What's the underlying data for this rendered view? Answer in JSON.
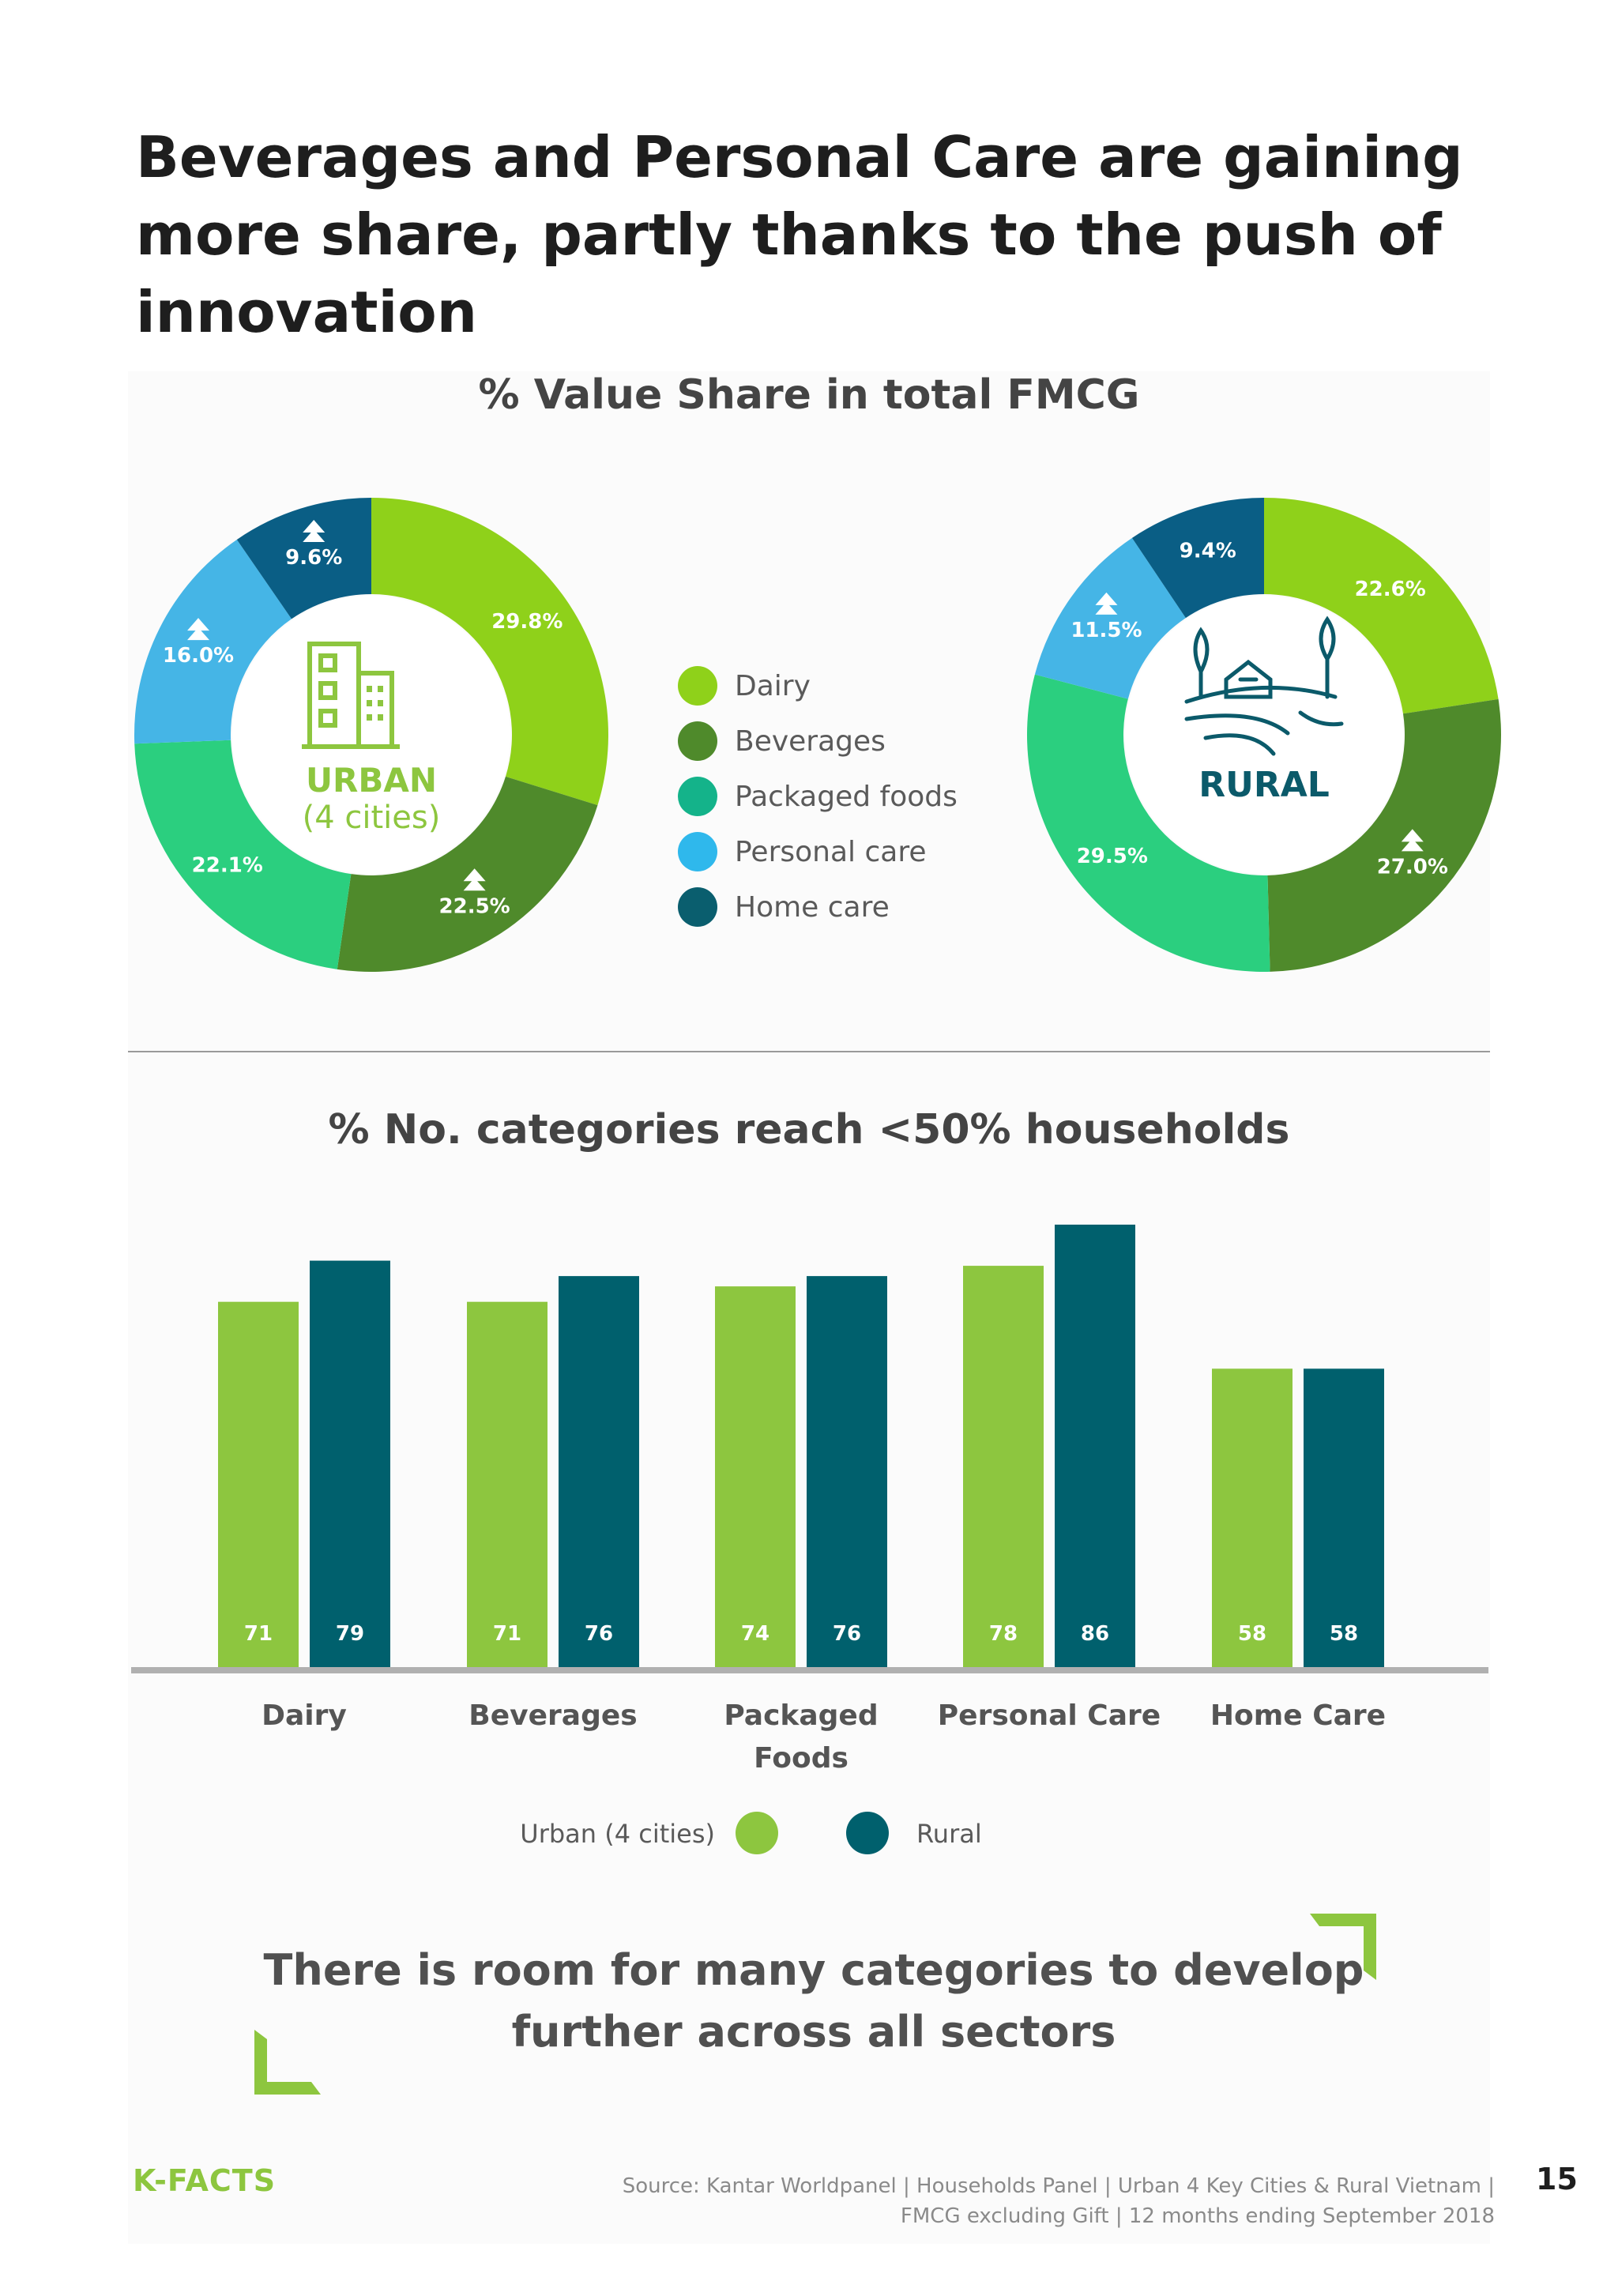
{
  "page_title": "Beverages and Personal Care are gaining more share, partly thanks to the push of innovation",
  "donut_section_title": "% Value Share in total FMCG",
  "bar_section_title": "% No. categories reach <50% households",
  "colors": {
    "dairy": "#8fd11a",
    "beverages": "#4f8a2b",
    "packaged_foods": "#2bcf7f",
    "personal_care": "#45b5e6",
    "home_care": "#0a5e85",
    "urban_bar": "#8dc63f",
    "rural_bar": "#00606d",
    "urban_label": "#8dc63f",
    "rural_label": "#0b5a6a",
    "accent": "#8dc63f"
  },
  "legend": [
    {
      "label": "Dairy",
      "color": "#8fd11a"
    },
    {
      "label": "Beverages",
      "color": "#4f8a2b"
    },
    {
      "label": "Packaged foods",
      "color": "#14b38a"
    },
    {
      "label": "Personal care",
      "color": "#2fb8ec"
    },
    {
      "label": "Home care",
      "color": "#0a5e6e"
    }
  ],
  "urban_center": {
    "label": "URBAN",
    "sublabel": "(4 cities)",
    "icon": "buildings-icon"
  },
  "rural_center": {
    "label": "RURAL",
    "icon": "farm-icon"
  },
  "bar_legend": {
    "urban": "Urban (4 cities)",
    "rural": "Rural"
  },
  "tagline": "There is room for many categories to develop further across all sectors",
  "footer": {
    "brand": "K-FACTS",
    "source_line1": "Source: Kantar Worldpanel | Households Panel | Urban 4 Key Cities & Rural Vietnam |",
    "source_line2": "FMCG excluding Gift | 12 months ending September 2018",
    "page_number": "15"
  },
  "chart_data": [
    {
      "type": "pie",
      "donut": true,
      "segment": "Urban (4 cities)",
      "slices": [
        {
          "name": "Dairy",
          "value": 29.8,
          "label": "29.8%",
          "trend_up": false
        },
        {
          "name": "Beverages",
          "value": 22.5,
          "label": "22.5%",
          "trend_up": true
        },
        {
          "name": "Packaged foods",
          "value": 22.1,
          "label": "22.1%",
          "trend_up": false
        },
        {
          "name": "Personal care",
          "value": 16.0,
          "label": "16.0%",
          "trend_up": true
        },
        {
          "name": "Home care",
          "value": 9.6,
          "label": "9.6%",
          "trend_up": true
        }
      ]
    },
    {
      "type": "pie",
      "donut": true,
      "segment": "Rural",
      "slices": [
        {
          "name": "Dairy",
          "value": 22.6,
          "label": "22.6%",
          "trend_up": false
        },
        {
          "name": "Beverages",
          "value": 27.0,
          "label": "27.0%",
          "trend_up": true
        },
        {
          "name": "Packaged foods",
          "value": 29.5,
          "label": "29.5%",
          "trend_up": false
        },
        {
          "name": "Personal care",
          "value": 11.5,
          "label": "11.5%",
          "trend_up": true
        },
        {
          "name": "Home care",
          "value": 9.4,
          "label": "9.4%",
          "trend_up": false
        }
      ]
    },
    {
      "type": "bar",
      "title": "% No. categories reach <50% households",
      "categories": [
        "Dairy",
        "Beverages",
        "Packaged\nFoods",
        "Personal Care",
        "Home Care"
      ],
      "series": [
        {
          "name": "Urban (4 cities)",
          "values": [
            71,
            71,
            74,
            78,
            58
          ]
        },
        {
          "name": "Rural",
          "values": [
            79,
            76,
            76,
            86,
            58
          ]
        }
      ],
      "ylim": [
        0,
        90
      ],
      "grid": false
    }
  ]
}
